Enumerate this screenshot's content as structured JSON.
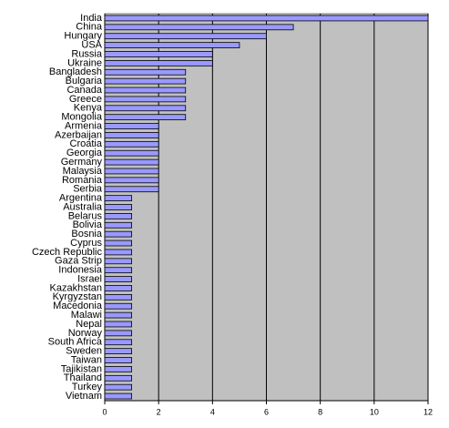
{
  "chart_data": {
    "type": "hbar",
    "categories": [
      "India",
      "China",
      "Hungary",
      "USA",
      "Russia",
      "Ukraine",
      "Bangladesh",
      "Bulgaria",
      "Canada",
      "Greece",
      "Kenya",
      "Mongolia",
      "Armenia",
      "Azerbaijan",
      "Croatia",
      "Georgia",
      "Germany",
      "Malaysia",
      "Romania",
      "Serbia",
      "Argentina",
      "Australia",
      "Belarus",
      "Bolivia",
      "Bosnia",
      "Cyprus",
      "Czech Republic",
      "Gaza Strip",
      "Indonesia",
      "Israel",
      "Kazakhstan",
      "Kyrgyzstan",
      "Macedonia",
      "Malawi",
      "Nepal",
      "Norway",
      "South Africa",
      "Sweden",
      "Taiwan",
      "Tajikistan",
      "Thailand",
      "Turkey",
      "Vietnam"
    ],
    "values": [
      12,
      7,
      6,
      5,
      4,
      4,
      3,
      3,
      3,
      3,
      3,
      3,
      2,
      2,
      2,
      2,
      2,
      2,
      2,
      2,
      1,
      1,
      1,
      1,
      1,
      1,
      1,
      1,
      1,
      1,
      1,
      1,
      1,
      1,
      1,
      1,
      1,
      1,
      1,
      1,
      1,
      1,
      1
    ],
    "color": "#9999ff",
    "xlim": [
      0,
      12
    ],
    "xticks": [
      0,
      2,
      4,
      6,
      8,
      10,
      12
    ],
    "grid": true
  }
}
